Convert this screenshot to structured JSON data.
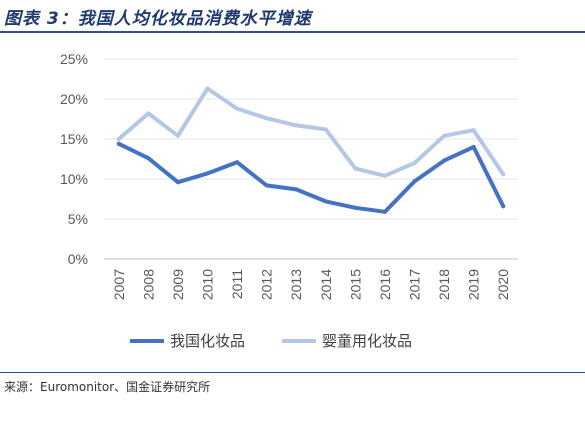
{
  "figure": {
    "title": "图表 3：我国人均化妆品消费水平增速",
    "source": "来源：Euromonitor、国金证券研究所"
  },
  "chart_data": {
    "type": "line",
    "title": "",
    "xlabel": "",
    "ylabel": "",
    "x": [
      "2007",
      "2008",
      "2009",
      "2010",
      "2011",
      "2012",
      "2013",
      "2014",
      "2015",
      "2016",
      "2017",
      "2018",
      "2019",
      "2020"
    ],
    "ylim": [
      0,
      25
    ],
    "yticks": [
      "0%",
      "5%",
      "10%",
      "15%",
      "20%",
      "25%"
    ],
    "grid": true,
    "legend_position": "bottom",
    "series": [
      {
        "name": "我国化妆品",
        "color": "#4472c4",
        "values": [
          14.4,
          12.6,
          9.6,
          10.7,
          12.1,
          9.2,
          8.7,
          7.2,
          6.4,
          5.9,
          9.7,
          12.3,
          14.0,
          6.6
        ]
      },
      {
        "name": "婴童用化妆品",
        "color": "#b4c7e7",
        "values": [
          15.0,
          18.2,
          15.4,
          21.3,
          18.8,
          17.6,
          16.7,
          16.2,
          11.3,
          10.4,
          12.0,
          15.4,
          16.1,
          10.6
        ]
      }
    ]
  }
}
